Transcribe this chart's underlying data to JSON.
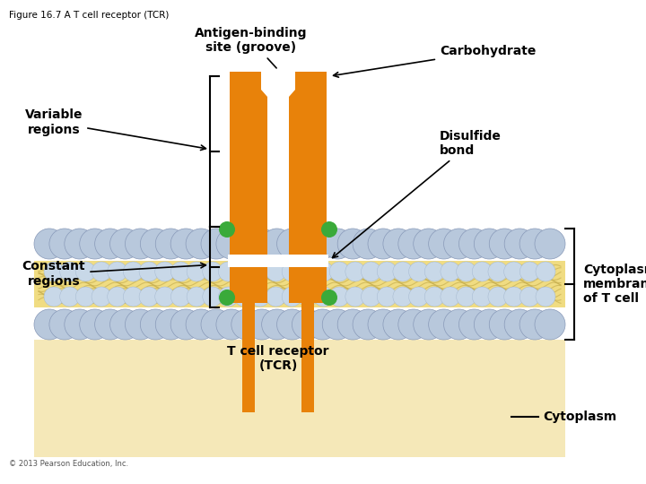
{
  "title": "Figure 16.7 A T cell receptor (TCR)",
  "bg_color": "#ffffff",
  "orange_color": "#e8820a",
  "green_dot_color": "#3aaa3a",
  "sphere_color": "#b8c8dc",
  "sphere_edge": "#8899b8",
  "interior_color": "#f0dc82",
  "cyto_color": "#f5e8b8",
  "label_variable": "Variable\nregions",
  "label_constant": "Constant\nregions",
  "label_antigen": "Antigen-binding\nsite (groove)",
  "label_carbohydrate": "Carbohydrate",
  "label_disulfide": "Disulfide\nbond",
  "label_tcr": "T cell receptor\n(TCR)",
  "label_cytoplasmic": "Cytoplasmic\nmembrane\nof T cell",
  "label_cytoplasm": "Cytoplasm",
  "copyright": "© 2013 Pearson Education, Inc."
}
